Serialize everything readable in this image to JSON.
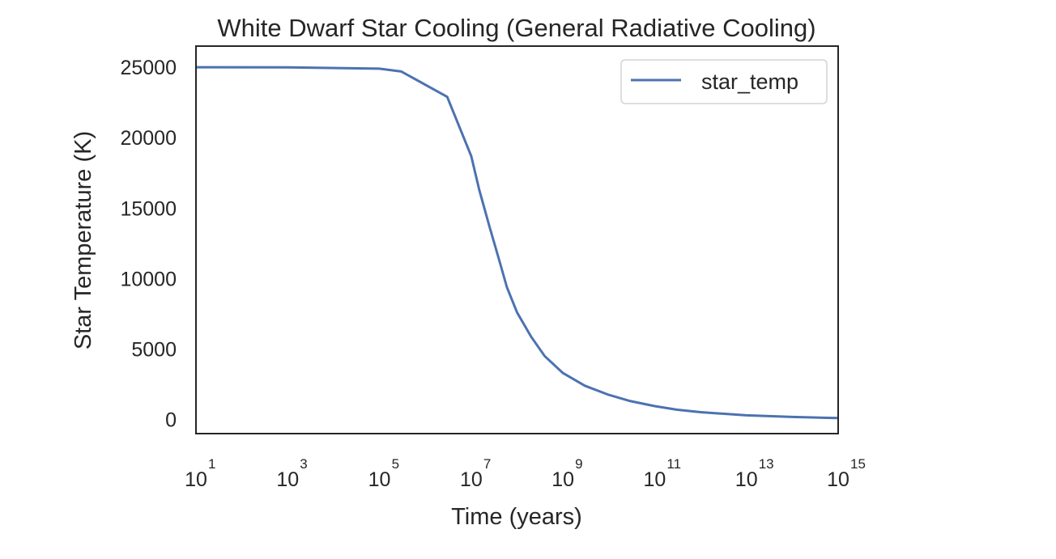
{
  "chart_data": {
    "type": "line",
    "title": "White Dwarf Star Cooling (General Radiative Cooling)",
    "xlabel": "Time (years)",
    "ylabel": "Star Temperature (K)",
    "x_scale": "log",
    "xlim": [
      10,
      1000000000000000.0
    ],
    "ylim": [
      -1000,
      26500
    ],
    "x_ticks": [
      {
        "base": "10",
        "exp": "1",
        "value": 10.0
      },
      {
        "base": "10",
        "exp": "3",
        "value": 1000.0
      },
      {
        "base": "10",
        "exp": "5",
        "value": 100000.0
      },
      {
        "base": "10",
        "exp": "7",
        "value": 10000000.0
      },
      {
        "base": "10",
        "exp": "9",
        "value": 1000000000.0
      },
      {
        "base": "10",
        "exp": "11",
        "value": 100000000000.0
      },
      {
        "base": "10",
        "exp": "13",
        "value": 10000000000000.0
      },
      {
        "base": "10",
        "exp": "15",
        "value": 1000000000000000.0
      }
    ],
    "y_ticks": [
      {
        "label": "0",
        "value": 0
      },
      {
        "label": "5000",
        "value": 5000
      },
      {
        "label": "10000",
        "value": 10000
      },
      {
        "label": "15000",
        "value": 15000
      },
      {
        "label": "20000",
        "value": 20000
      },
      {
        "label": "25000",
        "value": 25000
      }
    ],
    "grid": false,
    "legend": {
      "placement": "top-right"
    },
    "series": [
      {
        "name": "star_temp",
        "color": "#4c72b0",
        "x": [
          10.0,
          1000.0,
          100000.0,
          300000.0,
          3000000.0,
          10000000.0,
          15000000.0,
          25000000.0,
          40000000.0,
          60000000.0,
          100000000.0,
          200000000.0,
          400000000.0,
          1000000000.0,
          3000000000.0,
          10000000000.0,
          30000000000.0,
          100000000000.0,
          300000000000.0,
          1000000000000.0,
          10000000000000.0,
          100000000000000.0,
          1000000000000000.0
        ],
        "y": [
          25000,
          24990,
          24900,
          24700,
          22900,
          18700,
          16300,
          13700,
          11400,
          9400,
          7600,
          5900,
          4500,
          3300,
          2400,
          1750,
          1300,
          950,
          700,
          520,
          300,
          180,
          100
        ]
      }
    ]
  }
}
